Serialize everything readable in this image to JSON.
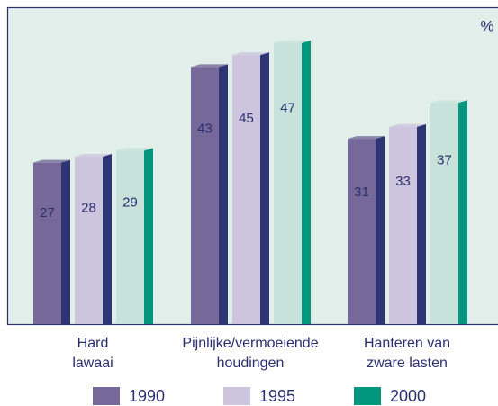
{
  "chart_data": {
    "type": "bar",
    "unit": "%",
    "categories": [
      [
        "Hard",
        "lawaai"
      ],
      [
        "Pijnlijke/vermoeiende",
        "houdingen"
      ],
      [
        "Hanteren van",
        "zware lasten"
      ]
    ],
    "series": [
      {
        "name": "1990",
        "color": "#76699a",
        "face": "#76699a",
        "side": "#2e3575",
        "values": [
          27,
          43,
          31
        ]
      },
      {
        "name": "1995",
        "color": "#cdc5dd",
        "face": "#cdc5dd",
        "side": "#2e3575",
        "values": [
          28,
          45,
          33
        ]
      },
      {
        "name": "2000",
        "color": "#00957d",
        "face": "#c7e2da",
        "side": "#00957d",
        "values": [
          29,
          47,
          37
        ]
      }
    ],
    "ylim": [
      0,
      53
    ]
  }
}
